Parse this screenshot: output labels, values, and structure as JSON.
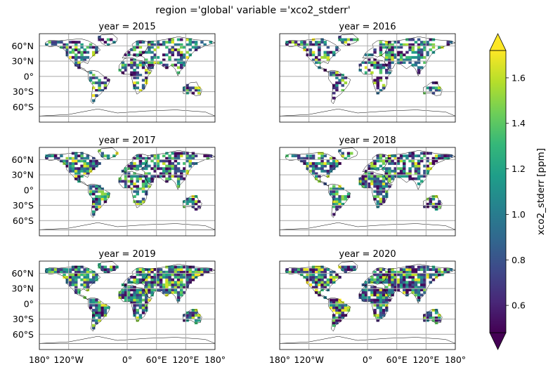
{
  "title": "region ='global' variable ='xco2_stderr'",
  "panels": [
    {
      "title": "year = 2015",
      "density": 0.55,
      "seed": 11
    },
    {
      "title": "year = 2016",
      "density": 0.55,
      "seed": 23
    },
    {
      "title": "year = 2017",
      "density": 0.7,
      "seed": 37
    },
    {
      "title": "year = 2018",
      "density": 0.7,
      "seed": 41
    },
    {
      "title": "year = 2019",
      "density": 0.85,
      "seed": 53
    },
    {
      "title": "year = 2020",
      "density": 0.85,
      "seed": 67
    }
  ],
  "lat_ticks": [
    "60°N",
    "30°N",
    "0°",
    "30°S",
    "60°S"
  ],
  "lon_ticks": [
    "180°",
    "120°W",
    "0°",
    "60°E",
    "120°E",
    "180°"
  ],
  "lat_values": [
    60,
    30,
    0,
    -30,
    -60
  ],
  "lon_values": [
    -180,
    -120,
    0,
    60,
    120,
    180
  ],
  "colorbar": {
    "label": "xco2_stderr [ppm]",
    "min": 0.48,
    "max": 1.72,
    "ticks": [
      "0.6",
      "0.8",
      "1.0",
      "1.2",
      "1.4",
      "1.6"
    ],
    "tick_values": [
      0.6,
      0.8,
      1.0,
      1.2,
      1.4,
      1.6
    ],
    "extend": "both",
    "colormap": "viridis"
  },
  "colors": {
    "grid": "#b0b0b0",
    "coast": "#000000",
    "viridis": [
      "#440154",
      "#482878",
      "#3e4989",
      "#31688e",
      "#26828e",
      "#1f9e89",
      "#35b779",
      "#6ece58",
      "#b5de2b",
      "#fde725"
    ]
  }
}
